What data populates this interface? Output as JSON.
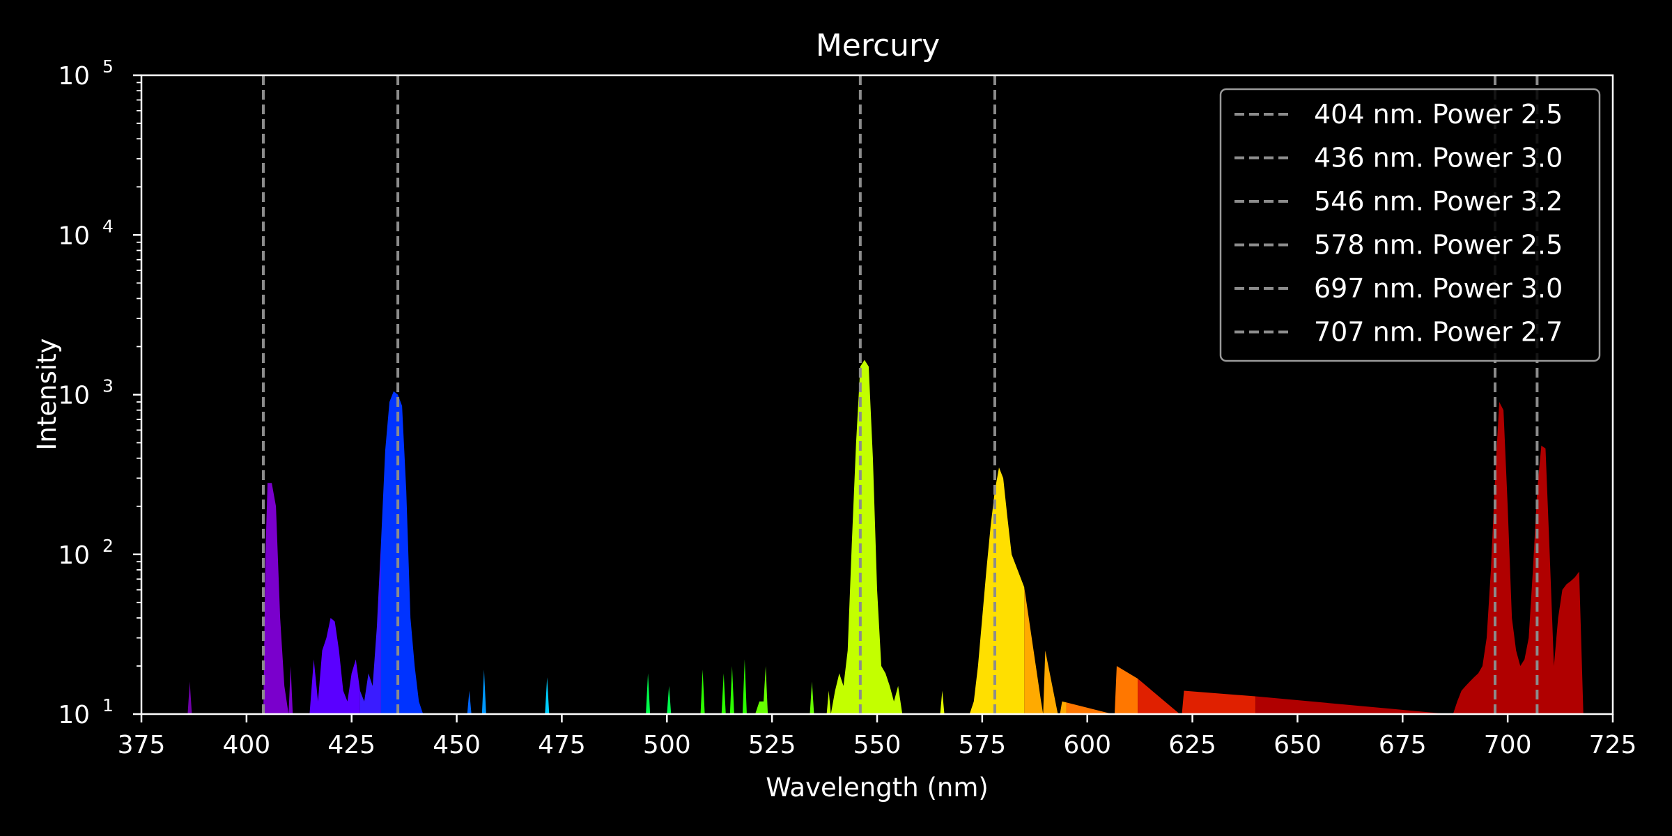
{
  "chart_data": {
    "type": "area",
    "title": "Mercury",
    "xlabel": "Wavelength (nm)",
    "ylabel": "Intensity",
    "xlim": [
      375,
      725
    ],
    "ylim": [
      10,
      100000
    ],
    "yscale": "log",
    "x_ticks": [
      "375",
      "400",
      "425",
      "450",
      "475",
      "500",
      "525",
      "550",
      "575",
      "600",
      "625",
      "650",
      "675",
      "700",
      "725"
    ],
    "y_ticks": [
      {
        "value": 10,
        "base": "10",
        "exp": "1"
      },
      {
        "value": 100,
        "base": "10",
        "exp": "2"
      },
      {
        "value": 1000,
        "base": "10",
        "exp": "3"
      },
      {
        "value": 10000,
        "base": "10",
        "exp": "4"
      },
      {
        "value": 100000,
        "base": "10",
        "exp": "5"
      }
    ],
    "legend_position": "top-right",
    "reference_lines": [
      {
        "x": 404,
        "label": "404 nm. Power 2.5"
      },
      {
        "x": 436,
        "label": "436 nm. Power 3.0"
      },
      {
        "x": 546,
        "label": "546 nm. Power 3.2"
      },
      {
        "x": 578,
        "label": "578 nm. Power 2.5"
      },
      {
        "x": 697,
        "label": "697 nm. Power 3.0"
      },
      {
        "x": 707,
        "label": "707 nm. Power 2.7"
      }
    ],
    "reference_line_color": "#8c8c8c",
    "background_color": "#000000",
    "spectrum": {
      "x": [
        386,
        386.5,
        387,
        404,
        404.5,
        405,
        405.5,
        406,
        407,
        408,
        409,
        410,
        410.5,
        411,
        415,
        416,
        417,
        418,
        419,
        420,
        421,
        422,
        423,
        424,
        425,
        426,
        427,
        428,
        429,
        430,
        431,
        432,
        433,
        434,
        435,
        436,
        437,
        438,
        439,
        440,
        441,
        442,
        452.5,
        453,
        453.5,
        456,
        456.5,
        457,
        471,
        471.5,
        472,
        495,
        495.5,
        496,
        500,
        500.5,
        501,
        508,
        508.5,
        509,
        513,
        513.5,
        514,
        515,
        515.5,
        516,
        518,
        518.5,
        519,
        521,
        522,
        523,
        523.5,
        524,
        534,
        534.5,
        535,
        538,
        538.5,
        539,
        540,
        541,
        542,
        543,
        544,
        545,
        546,
        547,
        548,
        549,
        550,
        551,
        552,
        553,
        554,
        555,
        556,
        565,
        565.5,
        566,
        572,
        573,
        574,
        575,
        576,
        577,
        578,
        579,
        580,
        581,
        582,
        589,
        589.5,
        590,
        593,
        593.5,
        594,
        606,
        606.5,
        607,
        622,
        622.5,
        623,
        686,
        687,
        688,
        689,
        690,
        691,
        692,
        693,
        694,
        695,
        696,
        697,
        698,
        699,
        700,
        701,
        702,
        703,
        704,
        705,
        706,
        707,
        708,
        709,
        710,
        711,
        712,
        713,
        714,
        715,
        716,
        717,
        718
      ],
      "y": [
        10,
        16,
        10,
        10,
        100,
        280,
        280,
        280,
        200,
        40,
        15,
        10,
        20,
        10,
        10,
        22,
        12,
        25,
        30,
        40,
        38,
        25,
        14,
        12,
        18,
        22,
        14,
        12,
        18,
        15,
        35,
        120,
        450,
        900,
        1050,
        1000,
        850,
        250,
        40,
        20,
        12,
        10,
        10,
        14,
        10,
        10,
        19,
        10,
        10,
        17,
        10,
        10,
        18,
        10,
        10,
        15,
        10,
        10,
        19,
        10,
        10,
        18,
        10,
        10,
        20,
        10,
        10,
        22,
        10,
        10,
        12,
        12,
        20,
        10,
        10,
        16,
        10,
        10,
        14,
        10,
        14,
        18,
        15,
        25,
        120,
        500,
        1500,
        1650,
        1500,
        400,
        60,
        20,
        18,
        15,
        12,
        15,
        10,
        10,
        14,
        10,
        10,
        12,
        20,
        40,
        80,
        150,
        250,
        350,
        300,
        170,
        100,
        12,
        10,
        25,
        10,
        10,
        12,
        10,
        10,
        20,
        10,
        10,
        14,
        10,
        10,
        12,
        14,
        15,
        16,
        17,
        18,
        20,
        30,
        80,
        300,
        900,
        800,
        200,
        40,
        25,
        20,
        22,
        30,
        80,
        250,
        480,
        460,
        100,
        20,
        40,
        60,
        65,
        68,
        72,
        78,
        10
      ]
    },
    "color_bands": [
      {
        "from": 380,
        "to": 400,
        "color": "#6f00a8"
      },
      {
        "from": 400,
        "to": 412,
        "color": "#7a00cc"
      },
      {
        "from": 412,
        "to": 427,
        "color": "#5a00ff"
      },
      {
        "from": 427,
        "to": 432,
        "color": "#3a1cff"
      },
      {
        "from": 432,
        "to": 444,
        "color": "#0033ff"
      },
      {
        "from": 444,
        "to": 455,
        "color": "#0066ff"
      },
      {
        "from": 455,
        "to": 465,
        "color": "#0099ff"
      },
      {
        "from": 465,
        "to": 485,
        "color": "#00cfff"
      },
      {
        "from": 485,
        "to": 502,
        "color": "#00ff4c"
      },
      {
        "from": 502,
        "to": 520,
        "color": "#2cff00"
      },
      {
        "from": 520,
        "to": 536,
        "color": "#66ff00"
      },
      {
        "from": 536,
        "to": 560,
        "color": "#c3ff00"
      },
      {
        "from": 560,
        "to": 570,
        "color": "#e6ff00"
      },
      {
        "from": 570,
        "to": 585,
        "color": "#ffdf00"
      },
      {
        "from": 585,
        "to": 595,
        "color": "#ffaa00"
      },
      {
        "from": 595,
        "to": 612,
        "color": "#ff7700"
      },
      {
        "from": 612,
        "to": 640,
        "color": "#e02000"
      },
      {
        "from": 640,
        "to": 720,
        "color": "#b00000"
      }
    ]
  }
}
